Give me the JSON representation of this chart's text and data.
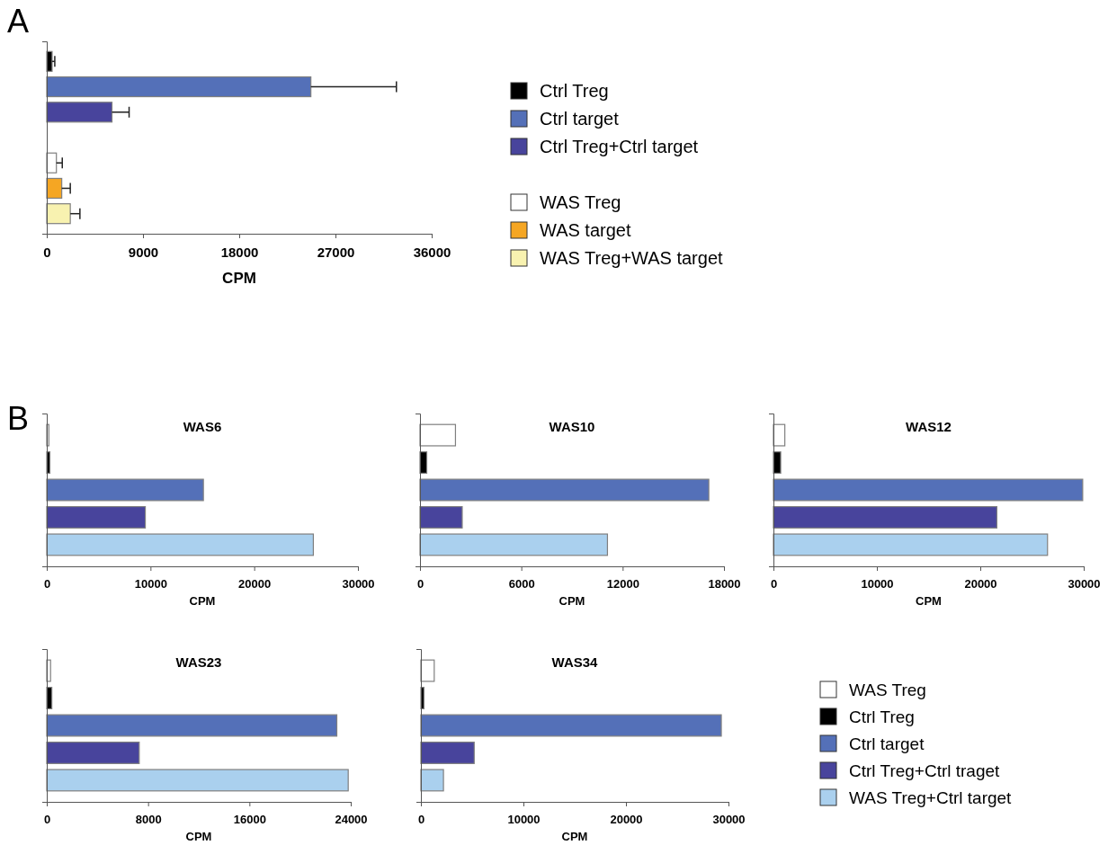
{
  "chart_data": [
    {
      "type": "bar",
      "orientation": "horizontal",
      "title": "A",
      "xlabel": "CPM",
      "categories": [
        null,
        null,
        null,
        null,
        null,
        null,
        null
      ],
      "xlim": [
        0,
        36000
      ],
      "xticks": [
        0,
        9000,
        18000,
        27000,
        36000
      ],
      "legend": "right",
      "series": [
        {
          "name": "Ctrl Treg",
          "color": "#000000",
          "values": [
            500,
            null,
            null,
            null,
            null,
            null,
            null
          ],
          "errors": [
            250,
            null,
            null,
            null,
            null,
            null,
            null
          ]
        },
        {
          "name": "Ctrl target",
          "color": "#5470b8",
          "values": [
            null,
            24700,
            null,
            null,
            null,
            null,
            null
          ],
          "errors": [
            null,
            8000,
            null,
            null,
            null,
            null,
            null
          ]
        },
        {
          "name": "Ctrl Treg+Ctrl target",
          "color": "#48449c",
          "values": [
            null,
            null,
            6100,
            null,
            null,
            null,
            null
          ],
          "errors": [
            null,
            null,
            1600,
            null,
            null,
            null,
            null
          ]
        },
        {
          "name": "WAS Treg",
          "color": "#ffffff",
          "values": [
            null,
            null,
            null,
            null,
            900,
            null,
            null
          ],
          "errors": [
            null,
            null,
            null,
            null,
            550,
            null,
            null
          ]
        },
        {
          "name": "WAS target",
          "color": "#f5a623",
          "values": [
            null,
            null,
            null,
            null,
            null,
            1400,
            null
          ],
          "errors": [
            null,
            null,
            null,
            null,
            null,
            800,
            null
          ]
        },
        {
          "name": "WAS Treg+WAS target",
          "color": "#f8f2b0",
          "values": [
            null,
            null,
            null,
            null,
            null,
            null,
            2200
          ],
          "errors": [
            null,
            null,
            null,
            null,
            null,
            null,
            900
          ]
        }
      ]
    },
    {
      "type": "bar",
      "orientation": "horizontal",
      "title": "WAS6",
      "xlabel": "CPM",
      "annotations": [
        "B"
      ],
      "categories": [
        null,
        null,
        null,
        null,
        null
      ],
      "xlim": [
        0,
        30000
      ],
      "xticks": [
        0,
        10000,
        20000,
        30000
      ],
      "series": [
        {
          "color": "#ffffff",
          "values": [
            200,
            null,
            null,
            null,
            null
          ]
        },
        {
          "color": "#000000",
          "values": [
            null,
            300,
            null,
            null,
            null
          ]
        },
        {
          "color": "#5470b8",
          "values": [
            null,
            null,
            15100,
            null,
            null
          ]
        },
        {
          "color": "#48449c",
          "values": [
            null,
            null,
            null,
            9500,
            null
          ]
        },
        {
          "color": "#aad0ee",
          "values": [
            null,
            null,
            null,
            null,
            25700
          ]
        }
      ]
    },
    {
      "type": "bar",
      "orientation": "horizontal",
      "title": "WAS10",
      "xlabel": "CPM",
      "categories": [
        null,
        null,
        null,
        null,
        null
      ],
      "xlim": [
        0,
        18000
      ],
      "xticks": [
        0,
        6000,
        12000,
        18000
      ],
      "series": [
        {
          "color": "#ffffff",
          "values": [
            2100,
            null,
            null,
            null,
            null
          ]
        },
        {
          "color": "#000000",
          "values": [
            null,
            400,
            null,
            null,
            null
          ]
        },
        {
          "color": "#5470b8",
          "values": [
            null,
            null,
            17100,
            null,
            null
          ]
        },
        {
          "color": "#48449c",
          "values": [
            null,
            null,
            null,
            2500,
            null
          ]
        },
        {
          "color": "#aad0ee",
          "values": [
            null,
            null,
            null,
            null,
            11100
          ]
        }
      ]
    },
    {
      "type": "bar",
      "orientation": "horizontal",
      "title": "WAS12",
      "xlabel": "CPM",
      "categories": [
        null,
        null,
        null,
        null,
        null
      ],
      "xlim": [
        0,
        30000
      ],
      "xticks": [
        0,
        10000,
        20000,
        30000
      ],
      "series": [
        {
          "color": "#ffffff",
          "values": [
            1100,
            null,
            null,
            null,
            null
          ]
        },
        {
          "color": "#000000",
          "values": [
            null,
            700,
            null,
            null,
            null
          ]
        },
        {
          "color": "#5470b8",
          "values": [
            null,
            null,
            29900,
            null,
            null
          ]
        },
        {
          "color": "#48449c",
          "values": [
            null,
            null,
            null,
            21600,
            null
          ]
        },
        {
          "color": "#aad0ee",
          "values": [
            null,
            null,
            null,
            null,
            26500
          ]
        }
      ]
    },
    {
      "type": "bar",
      "orientation": "horizontal",
      "title": "WAS23",
      "xlabel": "CPM",
      "categories": [
        null,
        null,
        null,
        null,
        null
      ],
      "xlim": [
        0,
        24000
      ],
      "xticks": [
        0,
        8000,
        16000,
        24000
      ],
      "series": [
        {
          "color": "#ffffff",
          "values": [
            300,
            null,
            null,
            null,
            null
          ]
        },
        {
          "color": "#000000",
          "values": [
            null,
            400,
            null,
            null,
            null
          ]
        },
        {
          "color": "#5470b8",
          "values": [
            null,
            null,
            22900,
            null,
            null
          ]
        },
        {
          "color": "#48449c",
          "values": [
            null,
            null,
            null,
            7300,
            null
          ]
        },
        {
          "color": "#aad0ee",
          "values": [
            null,
            null,
            null,
            null,
            23800
          ]
        }
      ]
    },
    {
      "type": "bar",
      "orientation": "horizontal",
      "title": "WAS34",
      "xlabel": "CPM",
      "categories": [
        null,
        null,
        null,
        null,
        null
      ],
      "xlim": [
        0,
        30000
      ],
      "xticks": [
        0,
        10000,
        20000,
        30000
      ],
      "legend": "right",
      "series": [
        {
          "name": "WAS Treg",
          "color": "#ffffff",
          "values": [
            1300,
            null,
            null,
            null,
            null
          ]
        },
        {
          "name": "Ctrl Treg",
          "color": "#000000",
          "values": [
            null,
            300,
            null,
            null,
            null
          ]
        },
        {
          "name": "Ctrl target",
          "color": "#5470b8",
          "values": [
            null,
            null,
            29300,
            null,
            null
          ]
        },
        {
          "name": "Ctrl Treg+Ctrl traget",
          "color": "#48449c",
          "values": [
            null,
            null,
            null,
            5200,
            null
          ]
        },
        {
          "name": "WAS Treg+Ctrl target",
          "color": "#aad0ee",
          "values": [
            null,
            null,
            null,
            null,
            2200
          ]
        }
      ]
    }
  ]
}
